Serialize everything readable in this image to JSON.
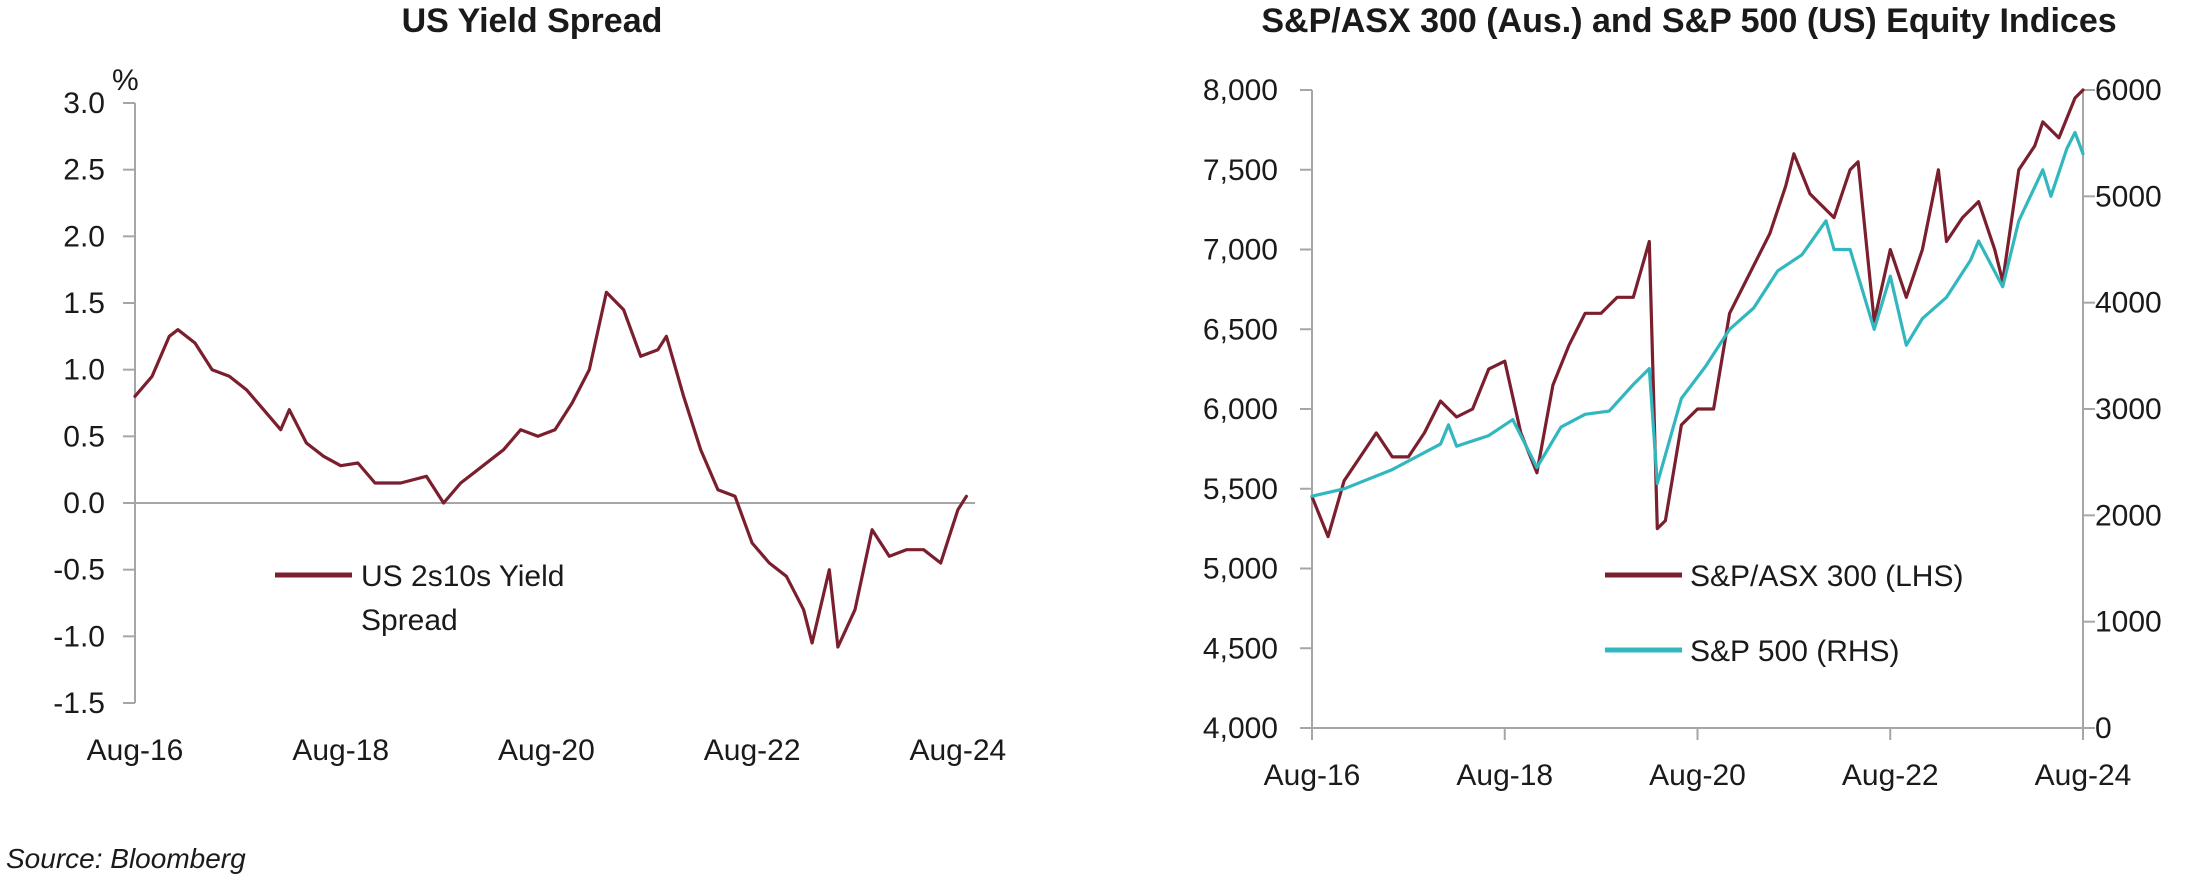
{
  "colors": {
    "maroon": "#7b1f2e",
    "teal": "#33b7bf",
    "axis": "#a6a6a6"
  },
  "chart_data": [
    {
      "type": "line",
      "title": "US Yield Spread",
      "ylabel": "%",
      "ylim": [
        -1.5,
        3.0
      ],
      "yticks": [
        "3.0",
        "2.5",
        "2.0",
        "1.5",
        "1.0",
        "0.5",
        "0.0",
        "-0.5",
        "-1.0",
        "-1.5"
      ],
      "xlim": [
        "Aug-16",
        "Oct-24"
      ],
      "xticks": [
        "Aug-16",
        "Aug-18",
        "Aug-20",
        "Aug-22",
        "Aug-24"
      ],
      "legend_position": "center-left",
      "series": [
        {
          "name": "US 2s10s Yield Spread",
          "legend_lines": [
            "US 2s10s Yield",
            "Spread"
          ],
          "color": "#7b1f2e",
          "points": [
            [
              "2016-08",
              0.8
            ],
            [
              "2016-10",
              0.95
            ],
            [
              "2016-12",
              1.25
            ],
            [
              "2017-01",
              1.3
            ],
            [
              "2017-03",
              1.2
            ],
            [
              "2017-05",
              1.0
            ],
            [
              "2017-07",
              0.95
            ],
            [
              "2017-09",
              0.85
            ],
            [
              "2017-11",
              0.7
            ],
            [
              "2018-01",
              0.55
            ],
            [
              "2018-02",
              0.7
            ],
            [
              "2018-04",
              0.45
            ],
            [
              "2018-06",
              0.35
            ],
            [
              "2018-08",
              0.28
            ],
            [
              "2018-10",
              0.3
            ],
            [
              "2018-12",
              0.15
            ],
            [
              "2019-03",
              0.15
            ],
            [
              "2019-06",
              0.2
            ],
            [
              "2019-08",
              0.0
            ],
            [
              "2019-10",
              0.15
            ],
            [
              "2019-12",
              0.25
            ],
            [
              "2020-03",
              0.4
            ],
            [
              "2020-05",
              0.55
            ],
            [
              "2020-07",
              0.5
            ],
            [
              "2020-09",
              0.55
            ],
            [
              "2020-11",
              0.75
            ],
            [
              "2021-01",
              1.0
            ],
            [
              "2021-03",
              1.58
            ],
            [
              "2021-05",
              1.45
            ],
            [
              "2021-07",
              1.1
            ],
            [
              "2021-09",
              1.15
            ],
            [
              "2021-10",
              1.25
            ],
            [
              "2021-12",
              0.8
            ],
            [
              "2022-02",
              0.4
            ],
            [
              "2022-04",
              0.1
            ],
            [
              "2022-06",
              0.05
            ],
            [
              "2022-08",
              -0.3
            ],
            [
              "2022-10",
              -0.45
            ],
            [
              "2022-12",
              -0.55
            ],
            [
              "2023-02",
              -0.8
            ],
            [
              "2023-03",
              -1.05
            ],
            [
              "2023-05",
              -0.5
            ],
            [
              "2023-06",
              -1.08
            ],
            [
              "2023-08",
              -0.8
            ],
            [
              "2023-10",
              -0.2
            ],
            [
              "2023-12",
              -0.4
            ],
            [
              "2024-02",
              -0.35
            ],
            [
              "2024-04",
              -0.35
            ],
            [
              "2024-06",
              -0.45
            ],
            [
              "2024-07",
              -0.25
            ],
            [
              "2024-08",
              -0.05
            ],
            [
              "2024-09",
              0.05
            ]
          ]
        }
      ]
    },
    {
      "type": "line",
      "title": "S&P/ASX 300 (Aus.) and S&P 500 (US) Equity Indices",
      "ylim": [
        4000,
        8000
      ],
      "yticks": [
        "8,000",
        "7,500",
        "7,000",
        "6,500",
        "6,000",
        "5,500",
        "5,000",
        "4,500",
        "4,000"
      ],
      "y2lim": [
        0,
        6000
      ],
      "y2ticks": [
        "6000",
        "5000",
        "4000",
        "3000",
        "2000",
        "1000",
        "0"
      ],
      "xlim": [
        "Aug-16",
        "Aug-24"
      ],
      "xticks": [
        "Aug-16",
        "Aug-18",
        "Aug-20",
        "Aug-22",
        "Aug-24"
      ],
      "legend_position": "bottom-right",
      "series": [
        {
          "name": "S&P/ASX 300 (LHS)",
          "axis": "left",
          "color": "#7b1f2e",
          "points": [
            [
              "2016-08",
              5450
            ],
            [
              "2016-10",
              5200
            ],
            [
              "2016-12",
              5550
            ],
            [
              "2017-02",
              5700
            ],
            [
              "2017-04",
              5850
            ],
            [
              "2017-06",
              5700
            ],
            [
              "2017-08",
              5700
            ],
            [
              "2017-10",
              5850
            ],
            [
              "2017-12",
              6050
            ],
            [
              "2018-02",
              5950
            ],
            [
              "2018-04",
              6000
            ],
            [
              "2018-06",
              6250
            ],
            [
              "2018-08",
              6300
            ],
            [
              "2018-10",
              5850
            ],
            [
              "2018-12",
              5600
            ],
            [
              "2019-02",
              6150
            ],
            [
              "2019-04",
              6400
            ],
            [
              "2019-06",
              6600
            ],
            [
              "2019-08",
              6600
            ],
            [
              "2019-10",
              6700
            ],
            [
              "2019-12",
              6700
            ],
            [
              "2020-02",
              7050
            ],
            [
              "2020-03",
              5250
            ],
            [
              "2020-04",
              5300
            ],
            [
              "2020-06",
              5900
            ],
            [
              "2020-08",
              6000
            ],
            [
              "2020-10",
              6000
            ],
            [
              "2020-12",
              6600
            ],
            [
              "2021-02",
              6800
            ],
            [
              "2021-05",
              7100
            ],
            [
              "2021-07",
              7400
            ],
            [
              "2021-08",
              7600
            ],
            [
              "2021-10",
              7350
            ],
            [
              "2022-01",
              7200
            ],
            [
              "2022-03",
              7500
            ],
            [
              "2022-04",
              7550
            ],
            [
              "2022-06",
              6550
            ],
            [
              "2022-08",
              7000
            ],
            [
              "2022-10",
              6700
            ],
            [
              "2022-12",
              7000
            ],
            [
              "2023-02",
              7500
            ],
            [
              "2023-03",
              7050
            ],
            [
              "2023-05",
              7200
            ],
            [
              "2023-07",
              7300
            ],
            [
              "2023-09",
              7000
            ],
            [
              "2023-10",
              6800
            ],
            [
              "2023-12",
              7500
            ],
            [
              "2024-02",
              7650
            ],
            [
              "2024-03",
              7800
            ],
            [
              "2024-05",
              7700
            ],
            [
              "2024-07",
              7950
            ],
            [
              "2024-08",
              8000
            ]
          ]
        },
        {
          "name": "S&P 500 (RHS)",
          "axis": "right",
          "color": "#33b7bf",
          "points": [
            [
              "2016-08",
              2180
            ],
            [
              "2016-12",
              2250
            ],
            [
              "2017-06",
              2430
            ],
            [
              "2017-12",
              2670
            ],
            [
              "2018-01",
              2850
            ],
            [
              "2018-02",
              2650
            ],
            [
              "2018-06",
              2750
            ],
            [
              "2018-09",
              2900
            ],
            [
              "2018-12",
              2450
            ],
            [
              "2019-03",
              2830
            ],
            [
              "2019-06",
              2950
            ],
            [
              "2019-09",
              2980
            ],
            [
              "2019-12",
              3230
            ],
            [
              "2020-02",
              3380
            ],
            [
              "2020-03",
              2300
            ],
            [
              "2020-06",
              3100
            ],
            [
              "2020-09",
              3400
            ],
            [
              "2020-12",
              3750
            ],
            [
              "2021-03",
              3950
            ],
            [
              "2021-06",
              4300
            ],
            [
              "2021-09",
              4450
            ],
            [
              "2021-12",
              4770
            ],
            [
              "2022-01",
              4500
            ],
            [
              "2022-03",
              4500
            ],
            [
              "2022-06",
              3750
            ],
            [
              "2022-08",
              4250
            ],
            [
              "2022-10",
              3600
            ],
            [
              "2022-12",
              3850
            ],
            [
              "2023-03",
              4050
            ],
            [
              "2023-06",
              4400
            ],
            [
              "2023-07",
              4580
            ],
            [
              "2023-10",
              4150
            ],
            [
              "2023-12",
              4770
            ],
            [
              "2024-03",
              5250
            ],
            [
              "2024-04",
              5000
            ],
            [
              "2024-06",
              5450
            ],
            [
              "2024-07",
              5600
            ],
            [
              "2024-08",
              5400
            ]
          ]
        }
      ]
    }
  ],
  "source": "Source: Bloomberg"
}
